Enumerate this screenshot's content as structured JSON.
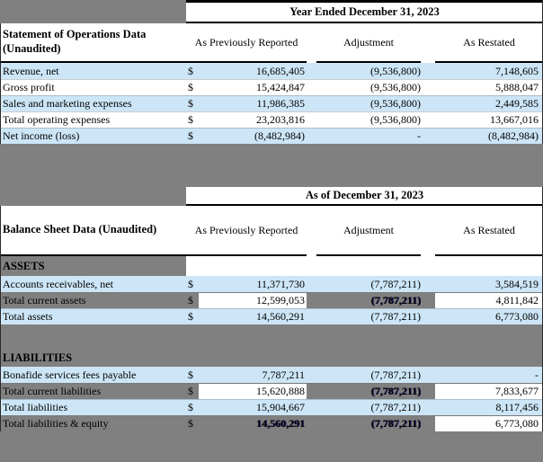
{
  "colors": {
    "row_highlight_blue": "#cde6f7",
    "background_gray": "#808080",
    "border_black": "#000000",
    "cell_white": "#ffffff"
  },
  "columns": {
    "previously_reported": "As Previously Reported",
    "adjustment": "Adjustment",
    "restated": "As Restated"
  },
  "table1": {
    "period_header": "Year Ended December 31, 2023",
    "title": "Statement of Operations Data (Unaudited)",
    "rows": [
      {
        "label": "Revenue, net",
        "dollar": "$",
        "v1": "16,685,405",
        "v2": "(9,536,800)",
        "v3": "7,148,605",
        "bg": "blue"
      },
      {
        "label": "Gross profit",
        "dollar": "$",
        "v1": "15,424,847",
        "v2": "(9,536,800)",
        "v3": "5,888,047",
        "bg": "white"
      },
      {
        "label": "Sales and marketing expenses",
        "dollar": "$",
        "v1": "11,986,385",
        "v2": "(9,536,800)",
        "v3": "2,449,585",
        "bg": "blue"
      },
      {
        "label": "Total operating expenses",
        "dollar": "$",
        "v1": "23,203,816",
        "v2": "(9,536,800)",
        "v3": "13,667,016",
        "bg": "white"
      },
      {
        "label": "Net income (loss)",
        "dollar": "$",
        "v1": "(8,482,984)",
        "v2": "-",
        "v3": "(8,482,984)",
        "bg": "blue"
      }
    ]
  },
  "table2": {
    "period_header": "As of December 31, 2023",
    "title": "Balance Sheet Data (Unaudited)",
    "sections": [
      {
        "heading": "ASSETS",
        "heading_style": "split",
        "rows": [
          {
            "label": "Accounts receivables, net",
            "dollar": "$",
            "v1": "11,371,730",
            "v2": "(7,787,211)",
            "v3": "3,584,519",
            "bg": "blue"
          },
          {
            "label": "Total current assets",
            "dollar": "$",
            "v1": "12,599,053",
            "v2": "(7,787,211)",
            "v3": "4,811,842",
            "bg": "gray",
            "white_cells": [
              "v1",
              "v3"
            ],
            "doubled": [
              "v2"
            ]
          },
          {
            "label": "Total assets",
            "dollar": "$",
            "v1": "14,560,291",
            "v2": "(7,787,211)",
            "v3": "6,773,080",
            "bg": "blue"
          }
        ]
      },
      {
        "heading": "LIABILITIES",
        "heading_style": "full",
        "rows": [
          {
            "label": "Bonafide services fees payable",
            "dollar": "$",
            "v1": "7,787,211",
            "v2": "(7,787,211)",
            "v3": "-",
            "bg": "blue"
          },
          {
            "label": "Total current liabilities",
            "dollar": "$",
            "v1": "15,620,888",
            "v2": "(7,787,211)",
            "v3": "7,833,677",
            "bg": "gray",
            "white_cells": [
              "v1",
              "v3"
            ],
            "doubled": [
              "v2"
            ]
          },
          {
            "label": "Total liabilities",
            "dollar": "$",
            "v1": "15,904,667",
            "v2": "(7,787,211)",
            "v3": "8,117,456",
            "bg": "blue"
          },
          {
            "label": "Total liabilities & equity",
            "dollar": "$",
            "v1": "14,560,291",
            "v2": "(7,787,211)",
            "v3": "6,773,080",
            "bg": "gray",
            "white_cells": [
              "v3"
            ],
            "doubled": [
              "v1",
              "v2"
            ]
          }
        ]
      }
    ]
  }
}
